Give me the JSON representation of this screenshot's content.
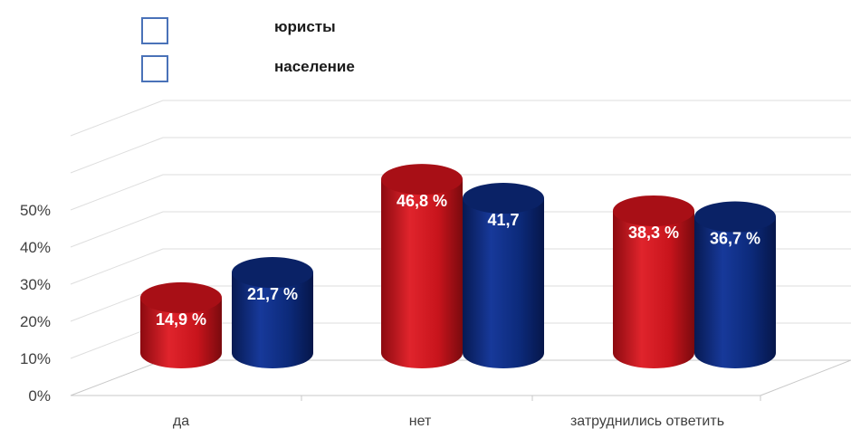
{
  "chart_data": {
    "type": "bar",
    "categories": [
      "да",
      "нет",
      "затруднились ответить"
    ],
    "series": [
      {
        "name": "юристы",
        "values": [
          14.9,
          46.8,
          38.3
        ],
        "labels": [
          "14,9 %",
          "46,8 %",
          "38,3 %"
        ],
        "color": "#c8141c"
      },
      {
        "name": "население",
        "values": [
          21.7,
          41.7,
          36.7
        ],
        "labels": [
          "21,7 %",
          "41,7",
          "36,7 %"
        ],
        "color": "#0c2a7a"
      }
    ],
    "y_ticks": [
      "0%",
      "10%",
      "20%",
      "30%",
      "40%",
      "50%"
    ],
    "ylim": [
      0,
      50
    ],
    "grid": true,
    "legend_position": "top-left",
    "style": "3d-cylinder"
  }
}
